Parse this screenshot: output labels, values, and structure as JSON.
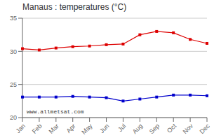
{
  "chart_data": {
    "type": "line",
    "title": "Manaus : temperatures (°C)",
    "categories": [
      "Jan",
      "Feb",
      "Mar",
      "Apr",
      "May",
      "Jun",
      "Jul",
      "Aug",
      "Sep",
      "Oct",
      "Nov",
      "Dec"
    ],
    "series": [
      {
        "color": "#dd0000",
        "marker": "square",
        "values": [
          30.4,
          30.2,
          30.5,
          30.7,
          30.8,
          31.0,
          31.1,
          32.5,
          33.0,
          32.8,
          31.8,
          31.2
        ]
      },
      {
        "color": "#0000cc",
        "marker": "square",
        "values": [
          23.1,
          23.1,
          23.1,
          23.2,
          23.1,
          23.0,
          22.5,
          22.8,
          23.1,
          23.4,
          23.4,
          23.3
        ]
      }
    ],
    "ylim": [
      20,
      35
    ],
    "yticks": [
      20,
      25,
      30,
      35
    ],
    "grid": true,
    "annotations": [
      "www.allmetsat.com"
    ]
  }
}
